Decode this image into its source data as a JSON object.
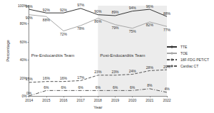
{
  "chart_data": {
    "type": "line",
    "x_label": "Year",
    "y_label": "Percentage",
    "categories": [
      "2014",
      "2015",
      "2016",
      "2017",
      "2018",
      "2019",
      "2020",
      "2021",
      "2022"
    ],
    "series": [
      {
        "name": "TTE",
        "color": "#333333",
        "line_style": "solid",
        "values": [
          96,
          92,
          92,
          97,
          90,
          89,
          94,
          96,
          88
        ],
        "value_labels": [
          "96%",
          "92%",
          "92%",
          "97%",
          "90%",
          "89%",
          "94%",
          "96%",
          "88%"
        ]
      },
      {
        "name": "TOE",
        "color": "#a6a6a6",
        "line_style": "solid",
        "values": [
          90,
          88,
          72,
          78,
          86,
          79,
          75,
          82,
          77
        ],
        "value_labels": [
          "90%",
          "88%",
          "72%",
          "78%",
          "86%",
          "79%",
          "75%",
          "82%",
          "77%"
        ]
      },
      {
        "name": "18F-FDG PET/CT",
        "color": "#555555",
        "line_style": "dashed",
        "values": [
          15,
          16,
          16,
          17,
          23,
          23,
          24,
          28,
          29
        ],
        "value_labels": [
          "15%",
          "16%",
          "16%",
          "17%",
          "23%",
          "23%",
          "24%",
          "28%",
          "29%"
        ]
      },
      {
        "name": "Cardiac CT",
        "color": "#555555",
        "line_style": "dashdot",
        "values": [
          0,
          6,
          6,
          6,
          6,
          6,
          6,
          8,
          4
        ],
        "value_labels": [
          "0%",
          "6%",
          "6%",
          "6%",
          "6%",
          "6%",
          "6%",
          "8%",
          "4%"
        ]
      }
    ],
    "ylim": [
      0,
      100
    ],
    "yticks": [
      {
        "value": 0,
        "label": "0%"
      },
      {
        "value": 20,
        "label": "20%"
      },
      {
        "value": 40,
        "label": "40%"
      },
      {
        "value": 60,
        "label": "60%"
      },
      {
        "value": 80,
        "label": "80%"
      },
      {
        "value": 100,
        "label": "100%"
      }
    ],
    "annotations": [
      {
        "text": "Pre-Endocarditis Team",
        "x": "2014"
      },
      {
        "text": "Post-Endocarditis Team",
        "x": "2018"
      }
    ],
    "data_labels": true,
    "legend": "right",
    "grid": false
  }
}
